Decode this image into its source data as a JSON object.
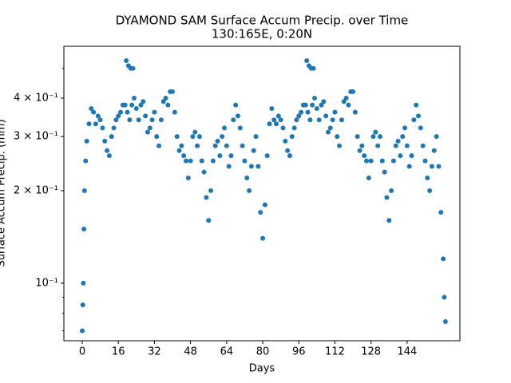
{
  "chart_data": {
    "type": "scatter",
    "title": "DYAMOND SAM Surface Accum Precip. over Time",
    "subtitle": "130:165E, 0:20N",
    "x_label": "Days",
    "y_label": "Surface Accum Precip. (mm)",
    "y_scale": "log",
    "xlim": [
      -8.14,
      167.4
    ],
    "ylim": [
      0.065,
      0.59
    ],
    "xticks": [
      0,
      16,
      32,
      48,
      64,
      80,
      96,
      112,
      128,
      144
    ],
    "yticks": [
      {
        "value": 0.1,
        "label": "10⁻¹"
      },
      {
        "value": 0.2,
        "label": "2 × 10⁻¹"
      },
      {
        "value": 0.3,
        "label": "3 × 10⁻¹"
      },
      {
        "value": 0.4,
        "label": "4 × 10⁻¹"
      }
    ],
    "yminorticks": [
      0.07,
      0.08,
      0.09,
      0.5
    ],
    "series": [
      {
        "color": "#1f77b4",
        "x": [
          0,
          0.25,
          0.5,
          0.75,
          1,
          1.5,
          2,
          3,
          4,
          5,
          6,
          7,
          8,
          9,
          10,
          11,
          12,
          13,
          14,
          15,
          16,
          17,
          18,
          19,
          20,
          21,
          22,
          23,
          24,
          25,
          26,
          27,
          28,
          29,
          30,
          31,
          32,
          33,
          34,
          35,
          36,
          37,
          38,
          39,
          40,
          41,
          42,
          43,
          44,
          45,
          46,
          47,
          48,
          49,
          50,
          51,
          52,
          53,
          54,
          55,
          56,
          57,
          58,
          59,
          60,
          61,
          62,
          63,
          64,
          65,
          66,
          67,
          68,
          69,
          70,
          71,
          72,
          73,
          74,
          75,
          76,
          77,
          78,
          79,
          80,
          81,
          82,
          83,
          84,
          85,
          86,
          87,
          88,
          89,
          90,
          91,
          92,
          93,
          94,
          95,
          96,
          97,
          98,
          99,
          100,
          101,
          102,
          103,
          104,
          105,
          106,
          107,
          108,
          109,
          110,
          111,
          112,
          113,
          114,
          115,
          116,
          117,
          118,
          119,
          120,
          121,
          122,
          123,
          124,
          125,
          126,
          127,
          128,
          129,
          130,
          131,
          132,
          133,
          134,
          135,
          136,
          137,
          138,
          139,
          140,
          141,
          142,
          143,
          144,
          145,
          146,
          147,
          148,
          149,
          150,
          151,
          152,
          153,
          154,
          155,
          156,
          157,
          158,
          159,
          160,
          160.5,
          161,
          19.5,
          20.5,
          21.5,
          22.5,
          99.5,
          100.5,
          101.5,
          102.5
        ],
        "values": [
          0.07,
          0.085,
          0.1,
          0.15,
          0.2,
          0.25,
          0.29,
          0.33,
          0.37,
          0.36,
          0.33,
          0.35,
          0.34,
          0.32,
          0.29,
          0.27,
          0.26,
          0.3,
          0.32,
          0.34,
          0.35,
          0.36,
          0.38,
          0.38,
          0.36,
          0.34,
          0.38,
          0.4,
          0.37,
          0.34,
          0.38,
          0.39,
          0.35,
          0.31,
          0.32,
          0.34,
          0.36,
          0.3,
          0.28,
          0.34,
          0.39,
          0.4,
          0.38,
          0.42,
          0.42,
          0.36,
          0.3,
          0.27,
          0.28,
          0.26,
          0.25,
          0.22,
          0.25,
          0.3,
          0.31,
          0.28,
          0.3,
          0.25,
          0.23,
          0.19,
          0.16,
          0.2,
          0.25,
          0.28,
          0.29,
          0.26,
          0.3,
          0.32,
          0.28,
          0.24,
          0.26,
          0.34,
          0.38,
          0.35,
          0.32,
          0.28,
          0.25,
          0.22,
          0.2,
          0.24,
          0.27,
          0.3,
          0.24,
          0.17,
          0.14,
          0.18,
          0.26,
          0.33,
          0.37,
          0.34,
          0.33,
          0.35,
          0.34,
          0.32,
          0.29,
          0.27,
          0.26,
          0.3,
          0.32,
          0.34,
          0.35,
          0.36,
          0.38,
          0.38,
          0.36,
          0.34,
          0.38,
          0.4,
          0.37,
          0.34,
          0.38,
          0.39,
          0.35,
          0.31,
          0.32,
          0.34,
          0.36,
          0.3,
          0.28,
          0.34,
          0.39,
          0.4,
          0.38,
          0.42,
          0.42,
          0.36,
          0.3,
          0.27,
          0.28,
          0.26,
          0.25,
          0.22,
          0.25,
          0.3,
          0.31,
          0.28,
          0.3,
          0.25,
          0.23,
          0.19,
          0.16,
          0.2,
          0.25,
          0.28,
          0.29,
          0.26,
          0.3,
          0.32,
          0.28,
          0.24,
          0.26,
          0.34,
          0.38,
          0.35,
          0.32,
          0.28,
          0.25,
          0.22,
          0.2,
          0.24,
          0.27,
          0.3,
          0.24,
          0.17,
          0.12,
          0.09,
          0.075,
          0.53,
          0.51,
          0.5,
          0.5,
          0.53,
          0.51,
          0.5,
          0.5
        ]
      }
    ]
  }
}
